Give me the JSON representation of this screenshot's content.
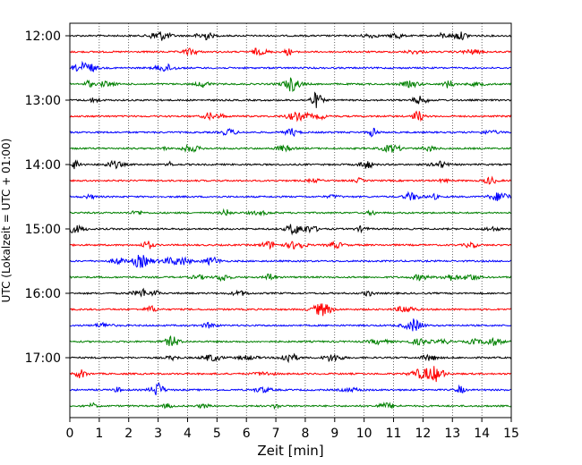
{
  "chart_data": {
    "type": "line",
    "title": "",
    "xlabel": "Zeit  [min]",
    "ylabel": "UTC (Lokalzeit = UTC + 01:00)",
    "xlim": [
      0,
      15
    ],
    "x_ticks": [
      "0",
      "1",
      "2",
      "3",
      "4",
      "5",
      "6",
      "7",
      "8",
      "9",
      "10",
      "11",
      "12",
      "13",
      "14",
      "15"
    ],
    "y_ticks": [
      "12:00",
      "13:00",
      "14:00",
      "15:00",
      "16:00",
      "17:00"
    ],
    "grid": "vertical dotted lines at each minute",
    "trace_interval_minutes": 15,
    "trace_start_times": [
      "12:00",
      "12:15",
      "12:30",
      "12:45",
      "13:00",
      "13:15",
      "13:30",
      "13:45",
      "14:00",
      "14:15",
      "14:30",
      "14:45",
      "15:00",
      "15:15",
      "15:30",
      "15:45",
      "16:00",
      "16:15",
      "16:30",
      "16:45",
      "17:00",
      "17:15",
      "17:30",
      "17:45"
    ],
    "trace_colors": [
      "#000000",
      "#ff0000",
      "#0000ff",
      "#008000"
    ]
  }
}
